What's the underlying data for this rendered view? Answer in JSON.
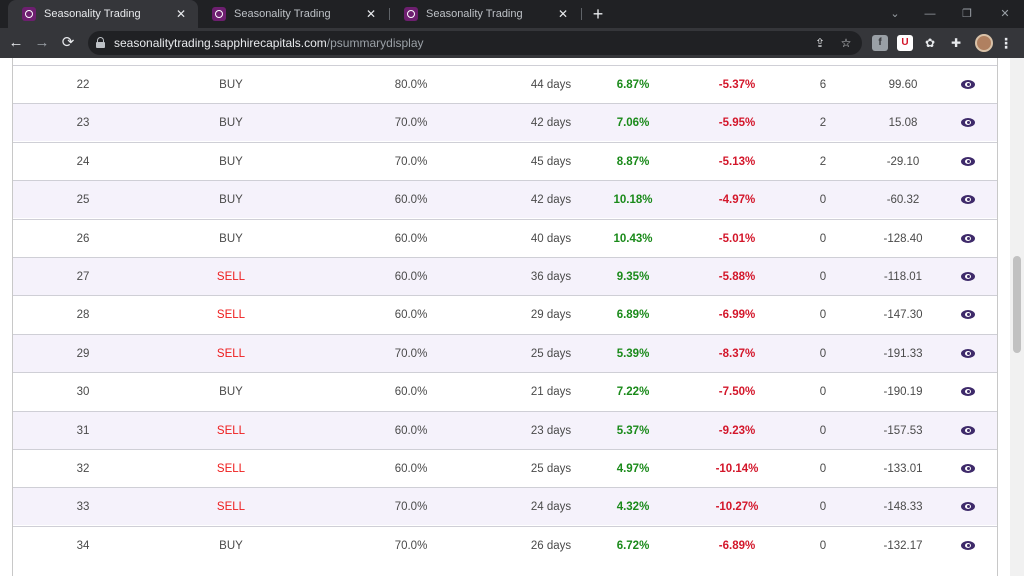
{
  "browser": {
    "tabs": [
      {
        "title": "Seasonality Trading",
        "active": true
      },
      {
        "title": "Seasonality Trading",
        "active": false
      },
      {
        "title": "Seasonality Trading",
        "active": false
      }
    ],
    "url_host": "seasonalitytrading.sapphirecapitals.com",
    "url_path": "/psummarydisplay",
    "icons": {
      "back": "arrow-left-icon",
      "forward": "arrow-right-icon",
      "reload": "reload-icon",
      "share": "share-icon",
      "bookmark": "star-icon",
      "extensions": "puzzle-icon",
      "menu": "kebab-icon"
    },
    "colors": {
      "frame": "#202124",
      "toolbar": "#35363a",
      "favicon": "#6d1f6f"
    }
  },
  "table": {
    "colors": {
      "buy_text": "#4a4a4a",
      "sell_text": "#ee1c1c",
      "gain": "#1a8a1a",
      "loss": "#d3162a",
      "eye": "#3e2a6a",
      "stripe": "#f5f2fb"
    },
    "rows": [
      {
        "no": "22",
        "signal": "BUY",
        "accuracy": "80.0%",
        "days": "44 days",
        "gain": "6.87%",
        "loss": "-5.37%",
        "count": "6",
        "value": "99.60"
      },
      {
        "no": "23",
        "signal": "BUY",
        "accuracy": "70.0%",
        "days": "42 days",
        "gain": "7.06%",
        "loss": "-5.95%",
        "count": "2",
        "value": "15.08"
      },
      {
        "no": "24",
        "signal": "BUY",
        "accuracy": "70.0%",
        "days": "45 days",
        "gain": "8.87%",
        "loss": "-5.13%",
        "count": "2",
        "value": "-29.10"
      },
      {
        "no": "25",
        "signal": "BUY",
        "accuracy": "60.0%",
        "days": "42 days",
        "gain": "10.18%",
        "loss": "-4.97%",
        "count": "0",
        "value": "-60.32"
      },
      {
        "no": "26",
        "signal": "BUY",
        "accuracy": "60.0%",
        "days": "40 days",
        "gain": "10.43%",
        "loss": "-5.01%",
        "count": "0",
        "value": "-128.40"
      },
      {
        "no": "27",
        "signal": "SELL",
        "accuracy": "60.0%",
        "days": "36 days",
        "gain": "9.35%",
        "loss": "-5.88%",
        "count": "0",
        "value": "-118.01"
      },
      {
        "no": "28",
        "signal": "SELL",
        "accuracy": "60.0%",
        "days": "29 days",
        "gain": "6.89%",
        "loss": "-6.99%",
        "count": "0",
        "value": "-147.30"
      },
      {
        "no": "29",
        "signal": "SELL",
        "accuracy": "70.0%",
        "days": "25 days",
        "gain": "5.39%",
        "loss": "-8.37%",
        "count": "0",
        "value": "-191.33"
      },
      {
        "no": "30",
        "signal": "BUY",
        "accuracy": "60.0%",
        "days": "21 days",
        "gain": "7.22%",
        "loss": "-7.50%",
        "count": "0",
        "value": "-190.19"
      },
      {
        "no": "31",
        "signal": "SELL",
        "accuracy": "60.0%",
        "days": "23 days",
        "gain": "5.37%",
        "loss": "-9.23%",
        "count": "0",
        "value": "-157.53"
      },
      {
        "no": "32",
        "signal": "SELL",
        "accuracy": "60.0%",
        "days": "25 days",
        "gain": "4.97%",
        "loss": "-10.14%",
        "count": "0",
        "value": "-133.01"
      },
      {
        "no": "33",
        "signal": "SELL",
        "accuracy": "70.0%",
        "days": "24 days",
        "gain": "4.32%",
        "loss": "-10.27%",
        "count": "0",
        "value": "-148.33"
      },
      {
        "no": "34",
        "signal": "BUY",
        "accuracy": "70.0%",
        "days": "26 days",
        "gain": "6.72%",
        "loss": "-6.89%",
        "count": "0",
        "value": "-132.17"
      }
    ]
  }
}
